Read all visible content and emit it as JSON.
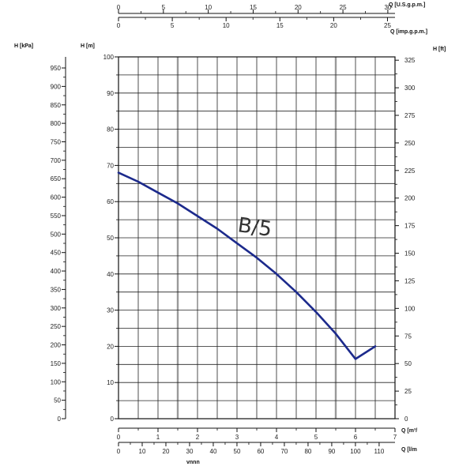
{
  "chart_data": {
    "type": "line",
    "curve_label": "B/5",
    "series": [
      {
        "x": [
          0,
          0.5,
          1,
          1.5,
          2,
          2.5,
          3,
          3.5,
          4,
          4.5,
          5,
          5.5,
          6,
          6.5
        ],
        "y": [
          68,
          65.5,
          62.5,
          59.5,
          56,
          52.5,
          48.5,
          44.5,
          40,
          35,
          29.5,
          23.5,
          16.5,
          20
        ]
      }
    ],
    "curve_color": "#1c2a8c",
    "axes": {
      "left_kpa": {
        "unit": "H [kPa]",
        "range": [
          0,
          980
        ],
        "ticks": [
          0,
          50,
          100,
          150,
          200,
          250,
          300,
          350,
          400,
          450,
          500,
          550,
          600,
          650,
          700,
          750,
          800,
          850,
          900,
          950
        ]
      },
      "left_m": {
        "unit": "H [m]",
        "range": [
          0,
          100
        ],
        "ticks": [
          0,
          10,
          20,
          30,
          40,
          50,
          60,
          70,
          80,
          90,
          100
        ]
      },
      "right_ft": {
        "unit": "H [ft]",
        "range": [
          0,
          328
        ],
        "ticks": [
          0,
          25,
          50,
          75,
          100,
          125,
          150,
          175,
          200,
          225,
          250,
          275,
          300,
          325
        ]
      },
      "bottom_m3h": {
        "unit": "Q [m³/",
        "range": [
          0,
          7
        ],
        "ticks": [
          0,
          1,
          2,
          3,
          4,
          5,
          6,
          7
        ]
      },
      "bottom_lmin": {
        "unit": "Q [l/m",
        "range": [
          0,
          116.7
        ],
        "ticks": [
          0,
          10,
          20,
          30,
          40,
          50,
          60,
          70,
          80,
          90,
          100,
          110
        ]
      },
      "bottom_text": "vnnn",
      "top_usgpm": {
        "unit": "Q [U.S.g.p.m.]",
        "range": [
          0,
          30.8
        ],
        "ticks": [
          0,
          5,
          10,
          15,
          20,
          25,
          30
        ]
      },
      "top_impgpm": {
        "unit": "Q [imp.g.p.m.]",
        "range": [
          0,
          25.7
        ],
        "ticks": [
          0,
          5,
          10,
          15,
          20,
          25
        ]
      }
    },
    "grid": true
  }
}
